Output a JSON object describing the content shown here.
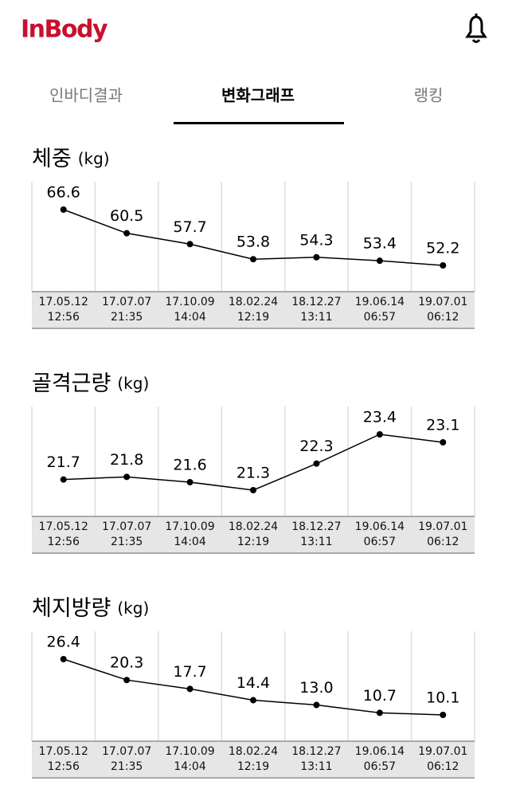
{
  "header": {
    "logo": "InBody"
  },
  "tabs": [
    {
      "label": "인바디결과"
    },
    {
      "label": "변화그래프",
      "active": true
    },
    {
      "label": "랭킹"
    }
  ],
  "chart_data": [
    {
      "type": "line",
      "title": "체중",
      "unit": "(kg)",
      "color": "#000000",
      "categories": [
        "17.05.12\n12:56",
        "17.07.07\n21:35",
        "17.10.09\n14:04",
        "18.02.24\n12:19",
        "18.12.27\n13:11",
        "19.06.14\n06:57",
        "19.07.01\n06:12"
      ],
      "values": [
        66.6,
        60.5,
        57.7,
        53.8,
        54.3,
        53.4,
        52.2
      ]
    },
    {
      "type": "line",
      "title": "골격근량",
      "unit": "(kg)",
      "color": "#000000",
      "categories": [
        "17.05.12\n12:56",
        "17.07.07\n21:35",
        "17.10.09\n14:04",
        "18.02.24\n12:19",
        "18.12.27\n13:11",
        "19.06.14\n06:57",
        "19.07.01\n06:12"
      ],
      "values": [
        21.7,
        21.8,
        21.6,
        21.3,
        22.3,
        23.4,
        23.1
      ]
    },
    {
      "type": "line",
      "title": "체지방량",
      "unit": "(kg)",
      "color": "#000000",
      "categories": [
        "17.05.12\n12:56",
        "17.07.07\n21:35",
        "17.10.09\n14:04",
        "18.02.24\n12:19",
        "18.12.27\n13:11",
        "19.06.14\n06:57",
        "19.07.01\n06:12"
      ],
      "values": [
        26.4,
        20.3,
        17.7,
        14.4,
        13.0,
        10.7,
        10.1
      ],
      "value_labels": [
        "26.4",
        "20.3",
        "17.7",
        "14.4",
        "13.0",
        "10.7",
        "10.1"
      ]
    }
  ]
}
